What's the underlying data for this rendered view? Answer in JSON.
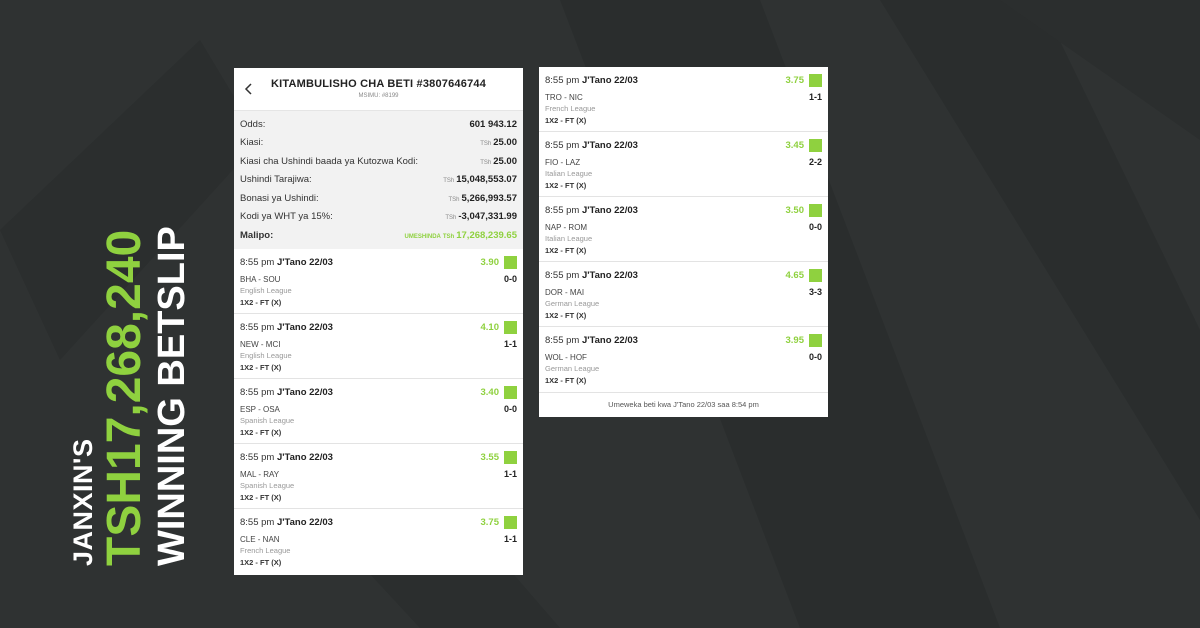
{
  "headline": {
    "line1": "JANXIN'S",
    "line2": "TSH17,268,240",
    "line3": "WINNING BETSLIP"
  },
  "colors": {
    "accent": "#8fd13f",
    "background": "#2f3232",
    "card": "#ffffff"
  },
  "betslip": {
    "title": "KITAMBULISHO CHA BETI #3807646744",
    "subtitle": "MSIMU: #8199",
    "summary": [
      {
        "label": "Odds:",
        "currency": "",
        "value": "601 943.12"
      },
      {
        "label": "Kiasi:",
        "currency": "TSh",
        "value": "25.00"
      },
      {
        "label": "Kiasi cha Ushindi baada ya Kutozwa Kodi:",
        "currency": "TSh",
        "value": "25.00"
      },
      {
        "label": "Ushindi Tarajiwa:",
        "currency": "TSh",
        "value": "15,048,553.07"
      },
      {
        "label": "Bonasi ya Ushindi:",
        "currency": "TSh",
        "value": "5,266,993.57"
      },
      {
        "label": "Kodi ya WHT ya 15%:",
        "currency": "TSh",
        "value": "-3,047,331.99"
      }
    ],
    "total": {
      "label": "Malipo:",
      "tag": "UMESHINDA",
      "currency": "TSh",
      "value": "17,268,239.65"
    },
    "matches_left": [
      {
        "time": "8:55 pm",
        "date": "J'Tano 22/03",
        "odds": "3.90",
        "teams": "BHA - SOU",
        "score": "0-0",
        "league": "English League",
        "market": "1X2 - FT (X)"
      },
      {
        "time": "8:55 pm",
        "date": "J'Tano 22/03",
        "odds": "4.10",
        "teams": "NEW - MCI",
        "score": "1-1",
        "league": "English League",
        "market": "1X2 - FT (X)"
      },
      {
        "time": "8:55 pm",
        "date": "J'Tano 22/03",
        "odds": "3.40",
        "teams": "ESP - OSA",
        "score": "0-0",
        "league": "Spanish League",
        "market": "1X2 - FT (X)"
      },
      {
        "time": "8:55 pm",
        "date": "J'Tano 22/03",
        "odds": "3.55",
        "teams": "MAL - RAY",
        "score": "1-1",
        "league": "Spanish League",
        "market": "1X2 - FT (X)"
      },
      {
        "time": "8:55 pm",
        "date": "J'Tano 22/03",
        "odds": "3.75",
        "teams": "CLE - NAN",
        "score": "1-1",
        "league": "French League",
        "market": "1X2 - FT (X)"
      }
    ],
    "matches_right": [
      {
        "time": "8:55 pm",
        "date": "J'Tano 22/03",
        "odds": "3.75",
        "teams": "TRO - NIC",
        "score": "1-1",
        "league": "French League",
        "market": "1X2 - FT (X)"
      },
      {
        "time": "8:55 pm",
        "date": "J'Tano 22/03",
        "odds": "3.45",
        "teams": "FIO - LAZ",
        "score": "2-2",
        "league": "Italian League",
        "market": "1X2 - FT (X)"
      },
      {
        "time": "8:55 pm",
        "date": "J'Tano 22/03",
        "odds": "3.50",
        "teams": "NAP - ROM",
        "score": "0-0",
        "league": "Italian League",
        "market": "1X2 - FT (X)"
      },
      {
        "time": "8:55 pm",
        "date": "J'Tano 22/03",
        "odds": "4.65",
        "teams": "DOR - MAI",
        "score": "3-3",
        "league": "German League",
        "market": "1X2 - FT (X)"
      },
      {
        "time": "8:55 pm",
        "date": "J'Tano 22/03",
        "odds": "3.95",
        "teams": "WOL - HOF",
        "score": "0-0",
        "league": "German League",
        "market": "1X2 - FT (X)"
      }
    ],
    "footer": "Umeweka beti kwa J'Tano 22/03 saa 8:54 pm"
  }
}
